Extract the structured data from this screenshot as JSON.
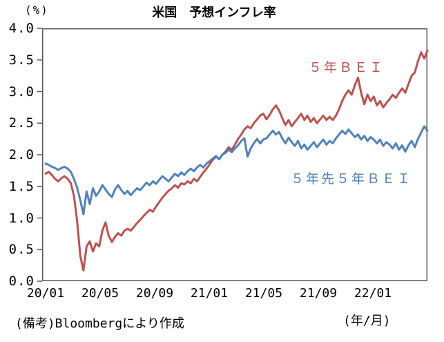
{
  "header": {
    "title": "米国　予想インフレ率",
    "y_unit": "(%)"
  },
  "footer": {
    "source_note": "(備考)Bloombergにより作成",
    "x_unit": "(年/月)"
  },
  "series_labels": {
    "bei5y": "５年ＢＥＩ",
    "bei5y5y": "５年先５年ＢＥＩ"
  },
  "colors": {
    "bei5y": "#C0504D",
    "bei5y5y": "#4F81BD",
    "axis": "#595959",
    "text": "#000000"
  },
  "chart_data": {
    "type": "line",
    "title": "米国　予想インフレ率",
    "ylabel": "(%)",
    "xlabel": "(年/月)",
    "ylim": [
      0.0,
      4.0
    ],
    "y_tick_step": 0.5,
    "y_ticks": [
      "4.0",
      "3.5",
      "3.0",
      "2.5",
      "2.0",
      "1.5",
      "1.0",
      "0.5",
      "0.0"
    ],
    "x_ticks": [
      "20/01",
      "20/05",
      "20/09",
      "21/01",
      "21/05",
      "21/09",
      "22/01"
    ],
    "grid": false,
    "legend_position": "inline-labels",
    "series": [
      {
        "name": "５年ＢＥＩ",
        "color": "#C0504D",
        "values": [
          1.7,
          1.73,
          1.68,
          1.62,
          1.58,
          1.63,
          1.66,
          1.62,
          1.55,
          1.35,
          0.95,
          0.4,
          0.17,
          0.55,
          0.63,
          0.47,
          0.6,
          0.55,
          0.8,
          0.93,
          0.72,
          0.62,
          0.7,
          0.76,
          0.72,
          0.8,
          0.83,
          0.8,
          0.86,
          0.92,
          0.97,
          1.03,
          1.08,
          1.13,
          1.1,
          1.18,
          1.25,
          1.32,
          1.38,
          1.43,
          1.47,
          1.52,
          1.48,
          1.55,
          1.53,
          1.58,
          1.55,
          1.62,
          1.58,
          1.65,
          1.72,
          1.78,
          1.85,
          1.92,
          1.97,
          1.93,
          2.0,
          2.05,
          2.12,
          2.08,
          2.16,
          2.25,
          2.32,
          2.4,
          2.45,
          2.42,
          2.5,
          2.56,
          2.62,
          2.65,
          2.56,
          2.63,
          2.72,
          2.78,
          2.7,
          2.58,
          2.47,
          2.55,
          2.45,
          2.52,
          2.58,
          2.65,
          2.55,
          2.62,
          2.52,
          2.58,
          2.5,
          2.56,
          2.62,
          2.55,
          2.6,
          2.55,
          2.62,
          2.72,
          2.85,
          2.95,
          3.02,
          2.95,
          3.1,
          3.22,
          2.98,
          2.8,
          2.95,
          2.85,
          2.92,
          2.78,
          2.85,
          2.75,
          2.82,
          2.88,
          2.95,
          2.9,
          2.98,
          3.05,
          2.98,
          3.12,
          3.25,
          3.3,
          3.48,
          3.62,
          3.52,
          3.65
        ]
      },
      {
        "name": "５年先５年ＢＥＩ",
        "color": "#4F81BD",
        "values": [
          1.86,
          1.84,
          1.81,
          1.79,
          1.76,
          1.79,
          1.81,
          1.78,
          1.73,
          1.62,
          1.48,
          1.28,
          1.06,
          1.42,
          1.22,
          1.47,
          1.35,
          1.42,
          1.52,
          1.45,
          1.38,
          1.33,
          1.45,
          1.52,
          1.44,
          1.38,
          1.43,
          1.36,
          1.42,
          1.47,
          1.44,
          1.5,
          1.56,
          1.52,
          1.58,
          1.54,
          1.6,
          1.66,
          1.62,
          1.58,
          1.64,
          1.7,
          1.66,
          1.72,
          1.68,
          1.74,
          1.78,
          1.74,
          1.8,
          1.84,
          1.8,
          1.86,
          1.9,
          1.94,
          1.98,
          1.93,
          2.0,
          2.03,
          2.08,
          2.04,
          2.1,
          2.15,
          2.22,
          2.26,
          1.97,
          2.1,
          2.18,
          2.25,
          2.18,
          2.24,
          2.26,
          2.32,
          2.38,
          2.32,
          2.36,
          2.26,
          2.18,
          2.27,
          2.2,
          2.14,
          2.22,
          2.1,
          2.16,
          2.08,
          2.14,
          2.2,
          2.12,
          2.18,
          2.24,
          2.16,
          2.22,
          2.18,
          2.26,
          2.32,
          2.38,
          2.33,
          2.4,
          2.34,
          2.28,
          2.32,
          2.24,
          2.3,
          2.22,
          2.28,
          2.24,
          2.18,
          2.24,
          2.14,
          2.2,
          2.16,
          2.1,
          2.18,
          2.08,
          2.15,
          2.05,
          2.15,
          2.22,
          2.12,
          2.25,
          2.35,
          2.45,
          2.38
        ]
      }
    ]
  }
}
